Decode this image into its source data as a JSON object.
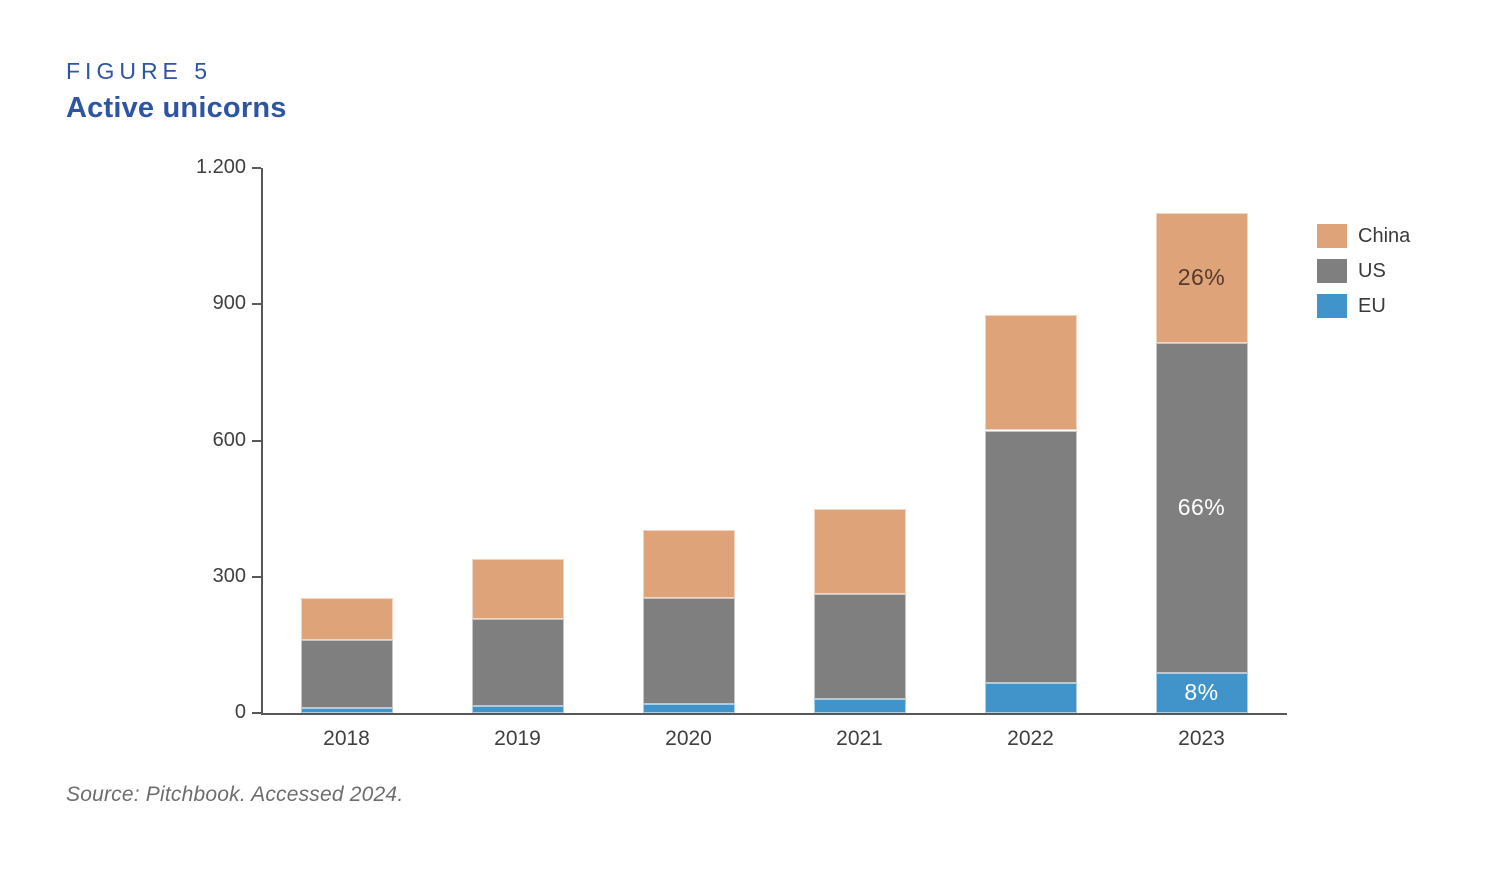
{
  "header": {
    "figure_label": "FIGURE 5",
    "title": "Active unicorns"
  },
  "source": "Source: Pitchbook. Accessed 2024.",
  "legend": {
    "position": "right",
    "items": [
      {
        "label": "China",
        "color": "#dfa379"
      },
      {
        "label": "US",
        "color": "#7f7f7f"
      },
      {
        "label": "EU",
        "color": "#4194ca"
      }
    ]
  },
  "chart_data": {
    "type": "bar",
    "subtype": "stacked",
    "title": "Active unicorns",
    "xlabel": "",
    "ylabel": "",
    "categories": [
      "2018",
      "2019",
      "2020",
      "2021",
      "2022",
      "2023"
    ],
    "series": [
      {
        "name": "China",
        "color": "#dfa379",
        "values": [
          93,
          130,
          149,
          187,
          254,
          286
        ]
      },
      {
        "name": "US",
        "color": "#7f7f7f",
        "values": [
          150,
          193,
          234,
          232,
          556,
          726
        ]
      },
      {
        "name": "EU",
        "color": "#4194ca",
        "values": [
          10,
          15,
          20,
          30,
          66,
          88
        ]
      }
    ],
    "totals": [
      253,
      338,
      403,
      449,
      876,
      1100
    ],
    "ylim": [
      0,
      1200
    ],
    "y_ticks": [
      {
        "value": 1200,
        "label": "1.200"
      },
      {
        "value": 900,
        "label": "900"
      },
      {
        "value": 600,
        "label": "600"
      },
      {
        "value": 300,
        "label": "300"
      },
      {
        "value": 0,
        "label": "0"
      }
    ],
    "grid": false,
    "legend_position": "right",
    "annotations": [
      {
        "category": "2023",
        "series": "China",
        "text": "26%",
        "text_color": "#55392b"
      },
      {
        "category": "2023",
        "series": "US",
        "text": "66%",
        "text_color": "#ffffff"
      },
      {
        "category": "2023",
        "series": "EU",
        "text": "8%",
        "text_color": "#ffffff"
      }
    ]
  }
}
